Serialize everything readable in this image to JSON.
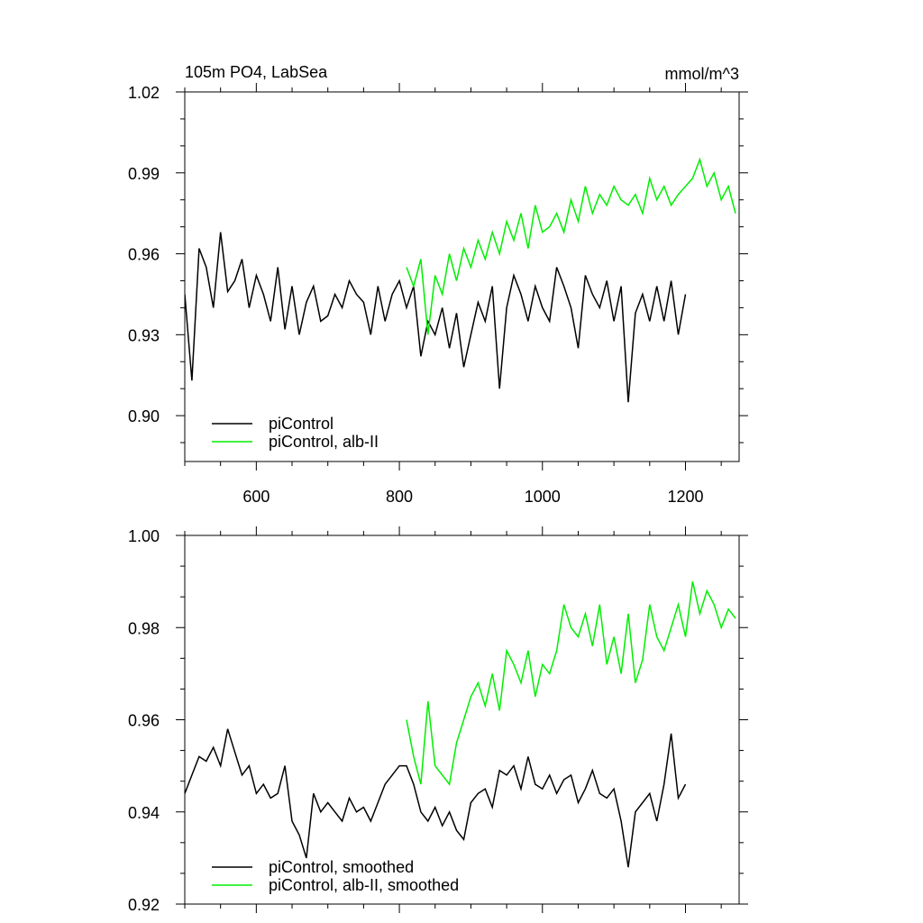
{
  "chart_data": [
    {
      "type": "line",
      "title": "105m PO4, LabSea",
      "units": "mmol/m^3",
      "xlim": [
        500,
        1275
      ],
      "ylim": [
        0.883,
        1.02
      ],
      "xticks": [
        600,
        800,
        1000,
        1200
      ],
      "yticks": [
        0.9,
        0.93,
        0.96,
        0.99,
        1.02
      ],
      "ytick_labels": [
        "0.90",
        "0.93",
        "0.96",
        "0.99",
        "1.02"
      ],
      "legend_position": "bottom-left",
      "series": [
        {
          "name": "piControl",
          "color": "#000000",
          "x": [
            500,
            510,
            520,
            530,
            540,
            550,
            560,
            570,
            580,
            590,
            600,
            610,
            620,
            630,
            640,
            650,
            660,
            670,
            680,
            690,
            700,
            710,
            720,
            730,
            740,
            750,
            760,
            770,
            780,
            790,
            800,
            810,
            820,
            830,
            840,
            850,
            860,
            870,
            880,
            890,
            900,
            910,
            920,
            930,
            940,
            950,
            960,
            970,
            980,
            990,
            1000,
            1010,
            1020,
            1030,
            1040,
            1050,
            1060,
            1070,
            1080,
            1090,
            1100,
            1110,
            1120,
            1130,
            1140,
            1150,
            1160,
            1170,
            1180,
            1190,
            1200
          ],
          "y": [
            0.945,
            0.913,
            0.962,
            0.955,
            0.94,
            0.968,
            0.946,
            0.95,
            0.958,
            0.94,
            0.952,
            0.945,
            0.935,
            0.955,
            0.932,
            0.948,
            0.93,
            0.942,
            0.948,
            0.935,
            0.937,
            0.945,
            0.94,
            0.95,
            0.945,
            0.942,
            0.93,
            0.948,
            0.935,
            0.945,
            0.95,
            0.94,
            0.948,
            0.922,
            0.935,
            0.93,
            0.94,
            0.925,
            0.938,
            0.918,
            0.93,
            0.942,
            0.935,
            0.948,
            0.91,
            0.94,
            0.952,
            0.945,
            0.935,
            0.948,
            0.94,
            0.935,
            0.955,
            0.948,
            0.94,
            0.925,
            0.952,
            0.945,
            0.94,
            0.95,
            0.935,
            0.948,
            0.905,
            0.938,
            0.945,
            0.935,
            0.948,
            0.935,
            0.95,
            0.93,
            0.945
          ]
        },
        {
          "name": "piControl, alb-II",
          "color": "#00ee00",
          "x": [
            810,
            820,
            830,
            840,
            850,
            860,
            870,
            880,
            890,
            900,
            910,
            920,
            930,
            940,
            950,
            960,
            970,
            980,
            990,
            1000,
            1010,
            1020,
            1030,
            1040,
            1050,
            1060,
            1070,
            1080,
            1090,
            1100,
            1110,
            1120,
            1130,
            1140,
            1150,
            1160,
            1170,
            1180,
            1190,
            1200,
            1210,
            1220,
            1230,
            1240,
            1250,
            1260,
            1270
          ],
          "y": [
            0.955,
            0.948,
            0.958,
            0.93,
            0.952,
            0.945,
            0.96,
            0.95,
            0.962,
            0.955,
            0.965,
            0.958,
            0.968,
            0.96,
            0.972,
            0.965,
            0.975,
            0.962,
            0.978,
            0.968,
            0.97,
            0.975,
            0.968,
            0.98,
            0.972,
            0.985,
            0.975,
            0.982,
            0.978,
            0.985,
            0.98,
            0.978,
            0.982,
            0.975,
            0.988,
            0.98,
            0.985,
            0.978,
            0.982,
            0.985,
            0.988,
            0.995,
            0.985,
            0.99,
            0.98,
            0.985,
            0.975
          ]
        }
      ]
    },
    {
      "type": "line",
      "xlim": [
        500,
        1275
      ],
      "ylim": [
        0.92,
        1.0
      ],
      "xticks": [
        600,
        800,
        1000,
        1200
      ],
      "yticks": [
        0.92,
        0.94,
        0.96,
        0.98,
        1.0
      ],
      "ytick_labels": [
        "0.92",
        "0.94",
        "0.96",
        "0.98",
        "1.00"
      ],
      "legend_position": "bottom-left",
      "series": [
        {
          "name": "piControl, smoothed",
          "color": "#000000",
          "x": [
            500,
            510,
            520,
            530,
            540,
            550,
            560,
            570,
            580,
            590,
            600,
            610,
            620,
            630,
            640,
            650,
            660,
            670,
            680,
            690,
            700,
            710,
            720,
            730,
            740,
            750,
            760,
            770,
            780,
            790,
            800,
            810,
            820,
            830,
            840,
            850,
            860,
            870,
            880,
            890,
            900,
            910,
            920,
            930,
            940,
            950,
            960,
            970,
            980,
            990,
            1000,
            1010,
            1020,
            1030,
            1040,
            1050,
            1060,
            1070,
            1080,
            1090,
            1100,
            1110,
            1120,
            1130,
            1140,
            1150,
            1160,
            1170,
            1180,
            1190,
            1200
          ],
          "y": [
            0.944,
            0.948,
            0.952,
            0.951,
            0.954,
            0.95,
            0.958,
            0.953,
            0.948,
            0.95,
            0.944,
            0.946,
            0.943,
            0.944,
            0.95,
            0.938,
            0.935,
            0.93,
            0.944,
            0.94,
            0.942,
            0.94,
            0.938,
            0.943,
            0.94,
            0.941,
            0.938,
            0.942,
            0.946,
            0.948,
            0.95,
            0.95,
            0.946,
            0.94,
            0.938,
            0.941,
            0.937,
            0.94,
            0.936,
            0.934,
            0.942,
            0.944,
            0.945,
            0.941,
            0.949,
            0.948,
            0.95,
            0.945,
            0.952,
            0.946,
            0.945,
            0.948,
            0.944,
            0.947,
            0.948,
            0.942,
            0.945,
            0.949,
            0.944,
            0.943,
            0.945,
            0.938,
            0.928,
            0.94,
            0.942,
            0.944,
            0.938,
            0.946,
            0.957,
            0.943,
            0.946
          ]
        },
        {
          "name": "piControl, alb-II, smoothed",
          "color": "#00ee00",
          "x": [
            810,
            820,
            830,
            840,
            850,
            860,
            870,
            880,
            890,
            900,
            910,
            920,
            930,
            940,
            950,
            960,
            970,
            980,
            990,
            1000,
            1010,
            1020,
            1030,
            1040,
            1050,
            1060,
            1070,
            1080,
            1090,
            1100,
            1110,
            1120,
            1130,
            1140,
            1150,
            1160,
            1170,
            1180,
            1190,
            1200,
            1210,
            1220,
            1230,
            1240,
            1250,
            1260,
            1270
          ],
          "y": [
            0.96,
            0.952,
            0.946,
            0.964,
            0.95,
            0.948,
            0.946,
            0.955,
            0.96,
            0.965,
            0.968,
            0.963,
            0.97,
            0.962,
            0.975,
            0.972,
            0.968,
            0.975,
            0.965,
            0.972,
            0.97,
            0.975,
            0.985,
            0.98,
            0.978,
            0.983,
            0.976,
            0.985,
            0.972,
            0.978,
            0.97,
            0.983,
            0.968,
            0.973,
            0.985,
            0.978,
            0.975,
            0.98,
            0.985,
            0.978,
            0.99,
            0.983,
            0.988,
            0.985,
            0.98,
            0.984,
            0.982
          ]
        }
      ]
    }
  ]
}
